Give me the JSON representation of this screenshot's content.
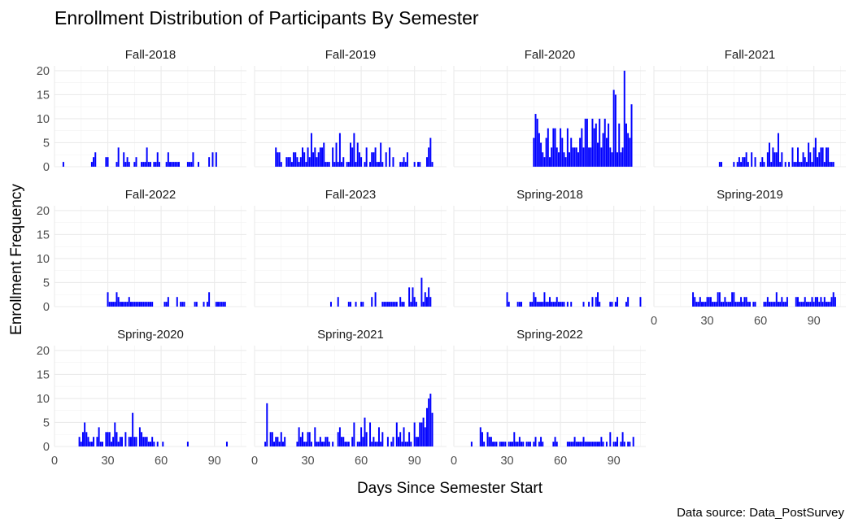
{
  "chart_data": {
    "type": "bar",
    "title": "Enrollment Distribution of Participants By Semester",
    "xlabel": "Days Since Semester Start",
    "ylabel": "Enrollment Frequency",
    "caption": "Data source: Data_PostSurvey",
    "xlim": [
      0,
      108
    ],
    "ylim": [
      0,
      21
    ],
    "x_ticks": [
      0,
      30,
      60,
      90
    ],
    "y_ticks": [
      0,
      5,
      10,
      15,
      20
    ],
    "bar_color": "#0000ff",
    "grid": true,
    "facets": [
      {
        "name": "Fall-2018",
        "x": [
          5,
          21,
          22,
          23,
          29,
          30,
          35,
          36,
          39,
          40,
          41,
          42,
          45,
          46,
          49,
          50,
          51,
          52,
          53,
          54,
          56,
          57,
          58,
          59,
          63,
          64,
          65,
          66,
          67,
          68,
          69,
          70,
          75,
          76,
          77,
          78,
          81,
          87,
          89,
          91
        ],
        "y": [
          1,
          1,
          2,
          3,
          2,
          2,
          1,
          4,
          3,
          1,
          2,
          1,
          1,
          2,
          1,
          1,
          1,
          4,
          1,
          1,
          1,
          1,
          3,
          1,
          1,
          3,
          1,
          1,
          1,
          1,
          1,
          1,
          1,
          1,
          1,
          3,
          1,
          2,
          3,
          3
        ]
      },
      {
        "name": "Fall-2019",
        "x": [
          12,
          13,
          14,
          15,
          18,
          19,
          20,
          21,
          22,
          23,
          24,
          25,
          26,
          27,
          28,
          29,
          30,
          31,
          32,
          33,
          34,
          35,
          36,
          37,
          38,
          39,
          40,
          41,
          42,
          44,
          45,
          46,
          47,
          48,
          49,
          50,
          52,
          53,
          54,
          55,
          56,
          57,
          58,
          59,
          60,
          62,
          63,
          65,
          66,
          67,
          68,
          69,
          70,
          71,
          72,
          74,
          76,
          78,
          82,
          83,
          84,
          85,
          86,
          90,
          92,
          93,
          97,
          98,
          99,
          100
        ],
        "y": [
          4,
          3,
          3,
          1,
          2,
          2,
          2,
          1,
          3,
          3,
          2,
          1,
          2,
          4,
          3,
          1,
          4,
          2,
          7,
          3,
          4,
          2,
          3,
          4,
          4,
          5,
          1,
          1,
          1,
          4,
          1,
          5,
          1,
          7,
          1,
          2,
          1,
          1,
          5,
          4,
          7,
          1,
          5,
          3,
          2,
          1,
          4,
          1,
          3,
          3,
          4,
          1,
          1,
          5,
          1,
          3,
          4,
          2,
          1,
          1,
          2,
          1,
          3,
          1,
          1,
          1,
          2,
          4,
          6,
          1
        ]
      },
      {
        "name": "Fall-2020",
        "x": [
          45,
          46,
          47,
          48,
          49,
          50,
          51,
          52,
          53,
          54,
          55,
          56,
          57,
          58,
          59,
          60,
          61,
          62,
          63,
          64,
          65,
          66,
          67,
          68,
          69,
          70,
          71,
          72,
          73,
          74,
          75,
          76,
          77,
          78,
          79,
          80,
          81,
          82,
          83,
          84,
          85,
          86,
          87,
          88,
          89,
          90,
          91,
          92,
          93,
          94,
          95,
          96,
          97,
          98,
          99,
          100
        ],
        "y": [
          6,
          11,
          10,
          7,
          5,
          3,
          2,
          6,
          8,
          2,
          4,
          8,
          8,
          4,
          3,
          8,
          6,
          3,
          2,
          8,
          3,
          6,
          4,
          4,
          4,
          3,
          6,
          8,
          4,
          10,
          10,
          4,
          4,
          10,
          8,
          9,
          5,
          10,
          4,
          7,
          10,
          6,
          9,
          4,
          3,
          16,
          15,
          3,
          9,
          3,
          4,
          20,
          9,
          7,
          6,
          13
        ]
      },
      {
        "name": "Fall-2021",
        "x": [
          37,
          38,
          45,
          47,
          48,
          49,
          50,
          51,
          52,
          53,
          55,
          57,
          60,
          61,
          62,
          64,
          65,
          66,
          67,
          68,
          69,
          70,
          71,
          72,
          74,
          76,
          78,
          79,
          80,
          81,
          82,
          83,
          84,
          85,
          86,
          87,
          88,
          89,
          90,
          91,
          92,
          93,
          94,
          95,
          96,
          97,
          98,
          99,
          100,
          101
        ],
        "y": [
          1,
          1,
          1,
          1,
          2,
          1,
          2,
          2,
          3,
          1,
          3,
          2,
          1,
          2,
          1,
          3,
          5,
          1,
          4,
          3,
          3,
          7,
          1,
          3,
          1,
          1,
          4,
          1,
          1,
          4,
          1,
          1,
          3,
          2,
          1,
          5,
          3,
          1,
          4,
          6,
          2,
          3,
          4,
          4,
          1,
          4,
          4,
          1,
          1,
          1
        ]
      },
      {
        "name": "Fall-2022",
        "x": [
          30,
          31,
          32,
          33,
          34,
          35,
          36,
          37,
          38,
          39,
          40,
          41,
          42,
          43,
          44,
          45,
          46,
          47,
          48,
          49,
          50,
          51,
          52,
          53,
          54,
          55,
          62,
          63,
          64,
          69,
          71,
          72,
          73,
          79,
          80,
          84,
          86,
          87,
          91,
          92,
          93,
          94,
          95,
          96
        ],
        "y": [
          3,
          1,
          1,
          1,
          1,
          3,
          2,
          1,
          1,
          1,
          1,
          1,
          2,
          1,
          1,
          1,
          1,
          1,
          1,
          1,
          1,
          1,
          1,
          1,
          1,
          1,
          1,
          1,
          2,
          2,
          1,
          1,
          1,
          1,
          1,
          1,
          1,
          3,
          1,
          1,
          1,
          1,
          1,
          1
        ]
      },
      {
        "name": "Fall-2023",
        "x": [
          43,
          47,
          53,
          54,
          57,
          60,
          61,
          66,
          68,
          72,
          73,
          74,
          75,
          76,
          77,
          78,
          79,
          80,
          82,
          83,
          84,
          87,
          88,
          89,
          90,
          91,
          94,
          95,
          96,
          97,
          98,
          99
        ],
        "y": [
          1,
          2,
          1,
          1,
          1,
          1,
          1,
          2,
          3,
          1,
          1,
          1,
          1,
          1,
          1,
          1,
          1,
          1,
          2,
          1,
          1,
          4,
          1,
          4,
          2,
          1,
          6,
          1,
          3,
          2,
          4,
          2
        ]
      },
      {
        "name": "Spring-2018",
        "x": [
          30,
          31,
          36,
          37,
          38,
          43,
          44,
          45,
          46,
          47,
          48,
          49,
          50,
          51,
          52,
          53,
          54,
          55,
          56,
          57,
          58,
          59,
          60,
          61,
          62,
          64,
          66,
          73,
          76,
          78,
          80,
          81,
          82,
          88,
          89,
          91,
          92,
          97,
          98,
          105
        ],
        "y": [
          3,
          1,
          1,
          1,
          1,
          1,
          1,
          3,
          2,
          1,
          1,
          1,
          1,
          3,
          1,
          1,
          2,
          1,
          1,
          1,
          2,
          1,
          1,
          1,
          1,
          1,
          1,
          1,
          1,
          2,
          2,
          3,
          1,
          1,
          1,
          1,
          2,
          1,
          2,
          2
        ]
      },
      {
        "name": "Spring-2019",
        "x": [
          22,
          23,
          24,
          25,
          26,
          27,
          28,
          29,
          30,
          31,
          32,
          33,
          34,
          35,
          36,
          37,
          38,
          39,
          40,
          41,
          42,
          43,
          44,
          45,
          46,
          47,
          48,
          49,
          50,
          51,
          52,
          53,
          54,
          56,
          57,
          62,
          63,
          64,
          65,
          66,
          67,
          68,
          69,
          70,
          71,
          72,
          73,
          74,
          75,
          80,
          81,
          82,
          83,
          84,
          85,
          86,
          87,
          88,
          89,
          90,
          91,
          92,
          93,
          94,
          95,
          96,
          97,
          98,
          99,
          100,
          101,
          102
        ],
        "y": [
          3,
          2,
          1,
          1,
          2,
          1,
          1,
          1,
          2,
          2,
          2,
          1,
          1,
          1,
          3,
          3,
          1,
          1,
          2,
          1,
          1,
          1,
          3,
          3,
          1,
          1,
          1,
          2,
          1,
          2,
          2,
          1,
          1,
          1,
          1,
          1,
          1,
          2,
          1,
          1,
          1,
          1,
          3,
          1,
          1,
          2,
          1,
          1,
          2,
          2,
          2,
          1,
          1,
          1,
          2,
          1,
          1,
          1,
          2,
          1,
          2,
          2,
          1,
          2,
          1,
          2,
          1,
          1,
          1,
          2,
          3,
          2
        ]
      },
      {
        "name": "Spring-2020",
        "x": [
          14,
          15,
          16,
          17,
          18,
          19,
          20,
          21,
          22,
          24,
          25,
          26,
          27,
          29,
          30,
          31,
          32,
          33,
          34,
          35,
          36,
          37,
          38,
          40,
          42,
          43,
          44,
          45,
          46,
          48,
          49,
          50,
          51,
          52,
          53,
          54,
          55,
          56,
          58,
          61,
          75,
          97
        ],
        "y": [
          2,
          1,
          3,
          5,
          3,
          2,
          1,
          1,
          2,
          2,
          4,
          1,
          1,
          3,
          3,
          3,
          1,
          2,
          5,
          3,
          1,
          2,
          2,
          3,
          2,
          2,
          7,
          2,
          2,
          4,
          3,
          2,
          2,
          2,
          1,
          1,
          2,
          1,
          1,
          1,
          1,
          1
        ]
      },
      {
        "name": "Spring-2021",
        "x": [
          6,
          7,
          9,
          10,
          11,
          12,
          13,
          14,
          15,
          16,
          17,
          24,
          25,
          26,
          27,
          28,
          29,
          30,
          31,
          32,
          34,
          35,
          36,
          37,
          38,
          39,
          40,
          41,
          42,
          44,
          47,
          48,
          49,
          50,
          51,
          52,
          53,
          55,
          56,
          58,
          59,
          60,
          61,
          62,
          63,
          65,
          66,
          67,
          68,
          69,
          70,
          71,
          72,
          75,
          77,
          78,
          80,
          81,
          82,
          83,
          84,
          85,
          86,
          87,
          88,
          90,
          91,
          92,
          93,
          94,
          95,
          96,
          97,
          98,
          99,
          100
        ],
        "y": [
          1,
          9,
          3,
          3,
          1,
          2,
          2,
          1,
          3,
          1,
          2,
          1,
          4,
          2,
          3,
          1,
          1,
          3,
          3,
          1,
          4,
          1,
          1,
          2,
          1,
          1,
          2,
          2,
          1,
          1,
          3,
          4,
          2,
          2,
          1,
          1,
          1,
          2,
          5,
          1,
          1,
          4,
          2,
          6,
          3,
          5,
          1,
          2,
          1,
          1,
          4,
          1,
          3,
          2,
          1,
          2,
          5,
          2,
          3,
          1,
          4,
          1,
          1,
          3,
          1,
          5,
          2,
          2,
          5,
          5,
          6,
          4,
          8,
          10,
          11,
          7
        ]
      },
      {
        "name": "Spring-2022",
        "x": [
          10,
          15,
          16,
          17,
          19,
          20,
          21,
          22,
          23,
          24,
          26,
          27,
          28,
          29,
          31,
          32,
          33,
          34,
          35,
          36,
          37,
          38,
          39,
          41,
          42,
          43,
          45,
          46,
          48,
          49,
          50,
          56,
          57,
          58,
          64,
          65,
          66,
          67,
          68,
          69,
          70,
          71,
          72,
          73,
          74,
          75,
          76,
          77,
          78,
          79,
          80,
          81,
          82,
          83,
          84,
          86,
          88,
          90,
          91,
          92,
          94,
          95,
          96,
          98,
          99,
          101
        ],
        "y": [
          1,
          4,
          3,
          1,
          3,
          2,
          2,
          1,
          1,
          1,
          1,
          1,
          1,
          1,
          1,
          1,
          1,
          3,
          1,
          1,
          2,
          1,
          1,
          1,
          1,
          1,
          1,
          2,
          1,
          2,
          1,
          1,
          2,
          1,
          1,
          1,
          1,
          1,
          2,
          1,
          1,
          1,
          1,
          2,
          1,
          1,
          1,
          1,
          1,
          1,
          1,
          1,
          1,
          2,
          1,
          1,
          3,
          1,
          1,
          2,
          1,
          3,
          1,
          1,
          1,
          2
        ]
      }
    ]
  }
}
